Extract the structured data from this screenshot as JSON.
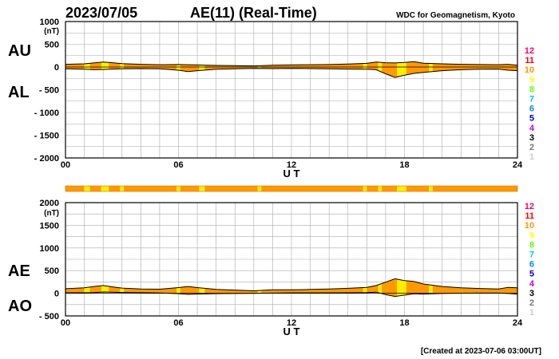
{
  "header": {
    "date": "2023/07/05",
    "title": "AE(11) (Real-Time)",
    "source": "WDC for Geomagnetism, Kyoto"
  },
  "footer": {
    "created": "[Created at 2023-07-06 03:00UT]"
  },
  "colors": {
    "frame": "#000000",
    "grid": "#aaaaaa",
    "fill_orange": "#ff9900",
    "fill_yellow": "#ffee00",
    "activity_scale": [
      "#cccccc",
      "#777777",
      "#000000",
      "#cc00cc",
      "#0000cc",
      "#0088ff",
      "#00cccc",
      "#66ff00",
      "#ffff00",
      "#ff9900",
      "#ff0000",
      "#ff0066"
    ]
  },
  "scale_labels": [
    "12",
    "11",
    "10",
    "9",
    "8",
    "7",
    "6",
    "5",
    "4",
    "3",
    "2",
    "1"
  ],
  "chart_data": [
    {
      "type": "area",
      "name": "AU/AL",
      "labels": {
        "upper": "AU",
        "lower": "AL"
      },
      "unit": "(nT)",
      "xlabel": "U T",
      "xlim": [
        0,
        24
      ],
      "xticks": [
        "00",
        "06",
        "12",
        "18",
        "24"
      ],
      "ylim": [
        -2000,
        1000
      ],
      "yticks": [
        "1000",
        "500",
        "0",
        "- 500",
        "- 1000",
        "- 1500",
        "- 2000"
      ],
      "grid": true,
      "series": [
        {
          "name": "AU",
          "x": [
            0,
            1,
            1.5,
            2,
            2.5,
            3,
            4,
            5,
            6,
            6.5,
            7,
            8,
            9,
            10,
            11,
            12,
            13,
            14,
            15,
            16,
            16.5,
            17,
            17.5,
            18,
            18.5,
            19,
            20,
            21,
            22,
            23,
            23.5,
            24
          ],
          "values": [
            60,
            70,
            90,
            110,
            95,
            75,
            60,
            50,
            55,
            50,
            45,
            35,
            30,
            25,
            40,
            45,
            50,
            55,
            65,
            80,
            110,
            95,
            90,
            100,
            120,
            85,
            70,
            60,
            55,
            50,
            60,
            40
          ]
        },
        {
          "name": "AL",
          "x": [
            0,
            1,
            1.5,
            2,
            2.5,
            3,
            4,
            5,
            6,
            6.5,
            7,
            8,
            9,
            10,
            11,
            12,
            13,
            14,
            15,
            16,
            16.5,
            17,
            17.5,
            18,
            18.5,
            19,
            20,
            21,
            22,
            23,
            23.5,
            24
          ],
          "values": [
            -40,
            -50,
            -60,
            -55,
            -45,
            -40,
            -35,
            -40,
            -70,
            -100,
            -80,
            -50,
            -40,
            -30,
            -35,
            -30,
            -35,
            -40,
            -45,
            -50,
            -60,
            -150,
            -230,
            -180,
            -140,
            -120,
            -80,
            -60,
            -50,
            -45,
            -70,
            -80
          ]
        }
      ]
    },
    {
      "type": "bar",
      "name": "activity-strip",
      "xlim": [
        0,
        24
      ],
      "segments": [
        {
          "start": 0,
          "end": 1.0,
          "color": "#ff9900"
        },
        {
          "start": 1.0,
          "end": 1.3,
          "color": "#ffee00"
        },
        {
          "start": 1.3,
          "end": 1.9,
          "color": "#ff9900"
        },
        {
          "start": 1.9,
          "end": 2.3,
          "color": "#ffee00"
        },
        {
          "start": 2.3,
          "end": 2.9,
          "color": "#ff9900"
        },
        {
          "start": 2.9,
          "end": 3.1,
          "color": "#ffee00"
        },
        {
          "start": 3.1,
          "end": 5.9,
          "color": "#ff9900"
        },
        {
          "start": 5.9,
          "end": 6.1,
          "color": "#ffee00"
        },
        {
          "start": 6.1,
          "end": 7.1,
          "color": "#ff9900"
        },
        {
          "start": 7.1,
          "end": 7.4,
          "color": "#ffee00"
        },
        {
          "start": 7.4,
          "end": 10.2,
          "color": "#ff9900"
        },
        {
          "start": 10.2,
          "end": 10.4,
          "color": "#ffee00"
        },
        {
          "start": 10.4,
          "end": 15.8,
          "color": "#ff9900"
        },
        {
          "start": 15.8,
          "end": 16.0,
          "color": "#ffee00"
        },
        {
          "start": 16.0,
          "end": 16.6,
          "color": "#ff9900"
        },
        {
          "start": 16.6,
          "end": 16.8,
          "color": "#ffee00"
        },
        {
          "start": 16.8,
          "end": 17.6,
          "color": "#ff9900"
        },
        {
          "start": 17.6,
          "end": 18.1,
          "color": "#ffee00"
        },
        {
          "start": 18.1,
          "end": 19.3,
          "color": "#ff9900"
        },
        {
          "start": 19.3,
          "end": 19.5,
          "color": "#ffee00"
        },
        {
          "start": 19.5,
          "end": 24,
          "color": "#ff9900"
        }
      ]
    },
    {
      "type": "area",
      "name": "AE/AO",
      "labels": {
        "upper": "AE",
        "lower": "AO"
      },
      "unit": "(nT)",
      "xlabel": "U T",
      "xlim": [
        0,
        24
      ],
      "xticks": [
        "00",
        "06",
        "12",
        "18",
        "24"
      ],
      "ylim": [
        -500,
        2000
      ],
      "yticks": [
        "2000",
        "1500",
        "1000",
        "500",
        "0",
        "- 500"
      ],
      "grid": true,
      "series": [
        {
          "name": "AE",
          "x": [
            0,
            1,
            1.5,
            2,
            2.5,
            3,
            4,
            5,
            6,
            6.5,
            7,
            8,
            9,
            10,
            11,
            12,
            13,
            14,
            15,
            16,
            16.5,
            17,
            17.5,
            18,
            18.5,
            19,
            20,
            21,
            22,
            23,
            23.5,
            24
          ],
          "values": [
            100,
            120,
            150,
            170,
            140,
            115,
            95,
            90,
            125,
            150,
            125,
            85,
            70,
            55,
            75,
            75,
            85,
            95,
            110,
            130,
            170,
            245,
            320,
            280,
            260,
            205,
            150,
            120,
            105,
            95,
            130,
            120
          ]
        },
        {
          "name": "AO",
          "x": [
            0,
            1,
            1.5,
            2,
            2.5,
            3,
            4,
            5,
            6,
            6.5,
            7,
            8,
            9,
            10,
            11,
            12,
            13,
            14,
            15,
            16,
            16.5,
            17,
            17.5,
            18,
            18.5,
            19,
            20,
            21,
            22,
            23,
            23.5,
            24
          ],
          "values": [
            10,
            10,
            15,
            28,
            25,
            18,
            13,
            5,
            -8,
            -25,
            -18,
            -8,
            -5,
            -3,
            3,
            8,
            8,
            8,
            10,
            15,
            25,
            -28,
            -70,
            -40,
            -10,
            -18,
            -5,
            0,
            3,
            3,
            -5,
            -20
          ]
        }
      ]
    }
  ]
}
